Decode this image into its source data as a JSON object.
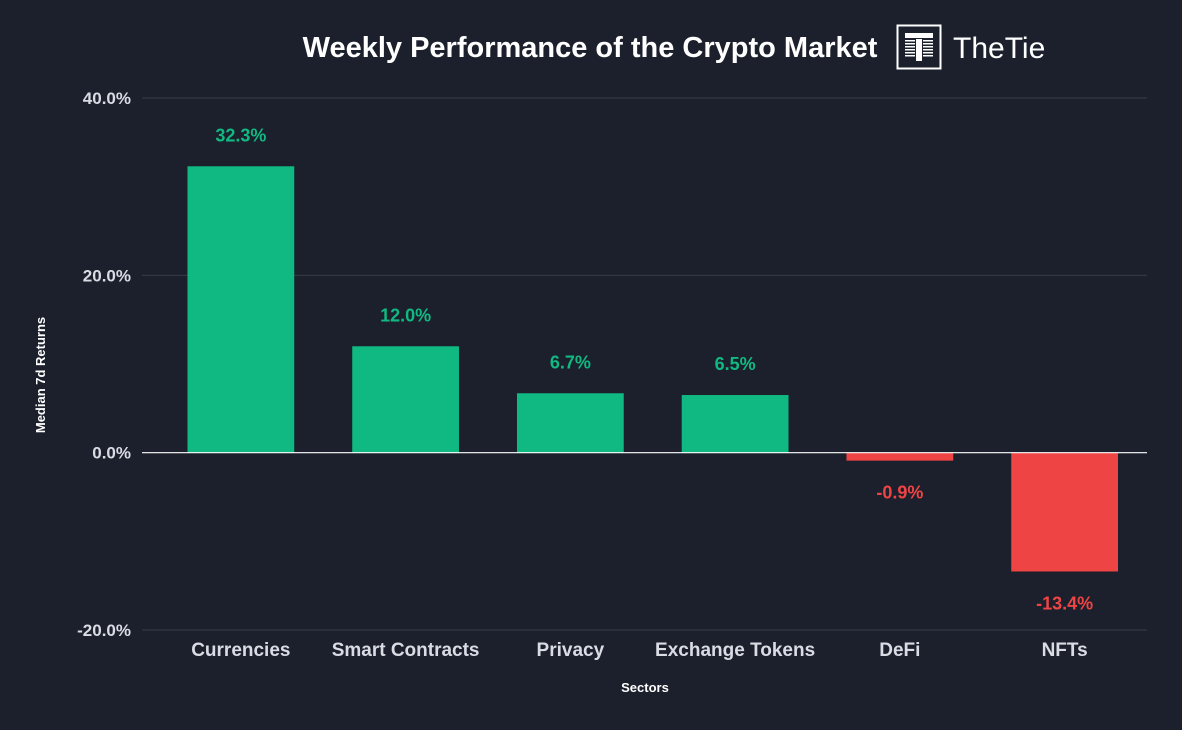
{
  "colors": {
    "background": "#1b202c",
    "positive": "#10b981",
    "negative": "#ef4444",
    "grid": "#363c48",
    "zero_line": "#ffffff",
    "text": "#d9dce3"
  },
  "brand": {
    "name": "TheTie",
    "icon": "thetie-logo-icon"
  },
  "chart_data": {
    "type": "bar",
    "title": "Weekly Performance of the Crypto Market",
    "xlabel": "Sectors",
    "ylabel": "Median 7d Returns",
    "ylim": [
      -20,
      40
    ],
    "yticks": [
      40,
      20,
      0,
      -20
    ],
    "ytick_labels": [
      "40.0%",
      "20.0%",
      "0.0%",
      "-20.0%"
    ],
    "categories": [
      "Currencies",
      "Smart Contracts",
      "Privacy",
      "Exchange Tokens",
      "DeFi",
      "NFTs"
    ],
    "values": [
      32.3,
      12.0,
      6.7,
      6.5,
      -0.9,
      -13.4
    ],
    "value_labels": [
      "32.3%",
      "12.0%",
      "6.7%",
      "6.5%",
      "-0.9%",
      "-13.4%"
    ],
    "grid": true,
    "legend": "none"
  }
}
